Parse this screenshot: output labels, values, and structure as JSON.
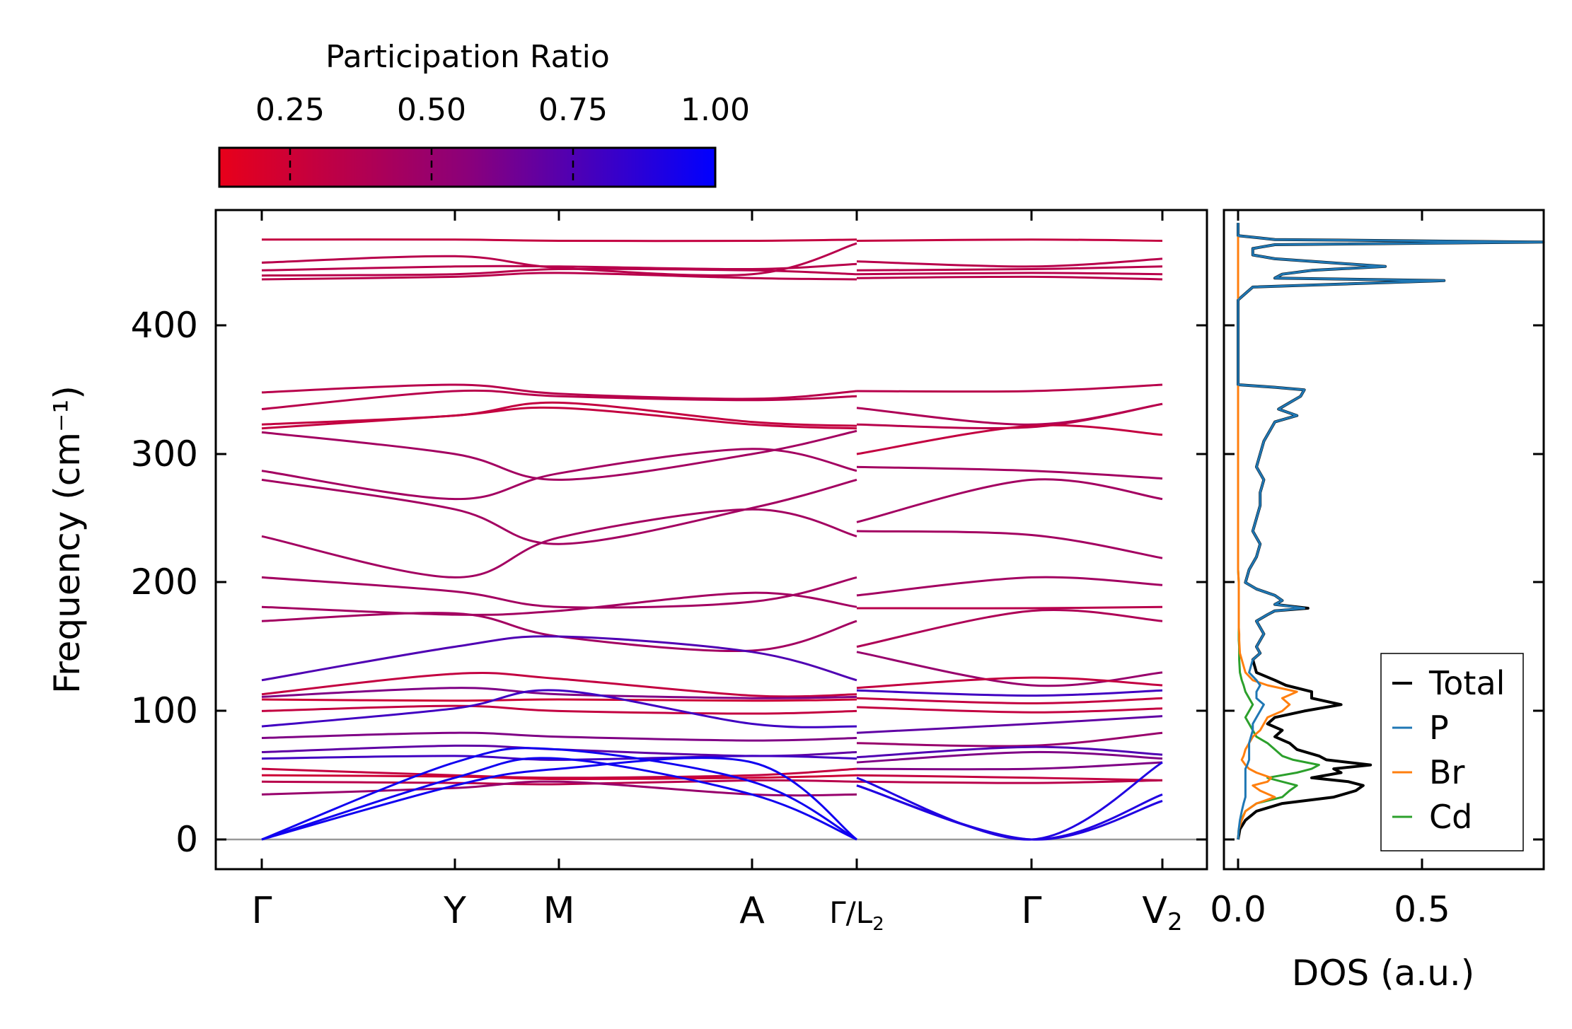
{
  "colors": {
    "pr_low": "#e8001a",
    "pr_mid": "#8b007a",
    "pr_high": "#0000ff",
    "total": "#000000",
    "P": "#1f77b4",
    "Br": "#ff7f0e",
    "Cd": "#2ca02c",
    "zero_line": "#999999"
  },
  "colorbar": {
    "title": "Participation Ratio",
    "ticks": [
      "0.25",
      "0.50",
      "0.75",
      "1.00"
    ]
  },
  "chart_data": [
    {
      "type": "line",
      "name": "phonon-band-structure",
      "ylabel": "Frequency (cm⁻¹)",
      "ylim": [
        -22,
        490
      ],
      "yticks": [
        "0",
        "100",
        "200",
        "300",
        "400"
      ],
      "kpath": [
        "Γ",
        "Y",
        "M",
        "A",
        "Γ/L₂",
        "Γ",
        "V₂"
      ],
      "kpath_labels": [
        {
          "text": "Γ",
          "sub": ""
        },
        {
          "text": "Y",
          "sub": ""
        },
        {
          "text": "M",
          "sub": ""
        },
        {
          "text": "A",
          "sub": ""
        },
        {
          "text": "Γ/L",
          "sub": "2"
        },
        {
          "text": "Γ",
          "sub": ""
        },
        {
          "text": "V",
          "sub": "2"
        }
      ],
      "color_by": "participation_ratio",
      "segment1_bands": [
        {
          "v": [
            467,
            467,
            466,
            466,
            467
          ],
          "pr": 0.3
        },
        {
          "v": [
            449,
            454,
            445,
            440,
            464
          ],
          "pr": 0.35
        },
        {
          "v": [
            443,
            446,
            446,
            444,
            448
          ],
          "pr": 0.35
        },
        {
          "v": [
            439,
            440,
            444,
            443,
            440
          ],
          "pr": 0.35
        },
        {
          "v": [
            436,
            438,
            441,
            437,
            436
          ],
          "pr": 0.35
        },
        {
          "v": [
            348,
            354,
            347,
            343,
            349
          ],
          "pr": 0.35
        },
        {
          "v": [
            335,
            349,
            345,
            342,
            345
          ],
          "pr": 0.35
        },
        {
          "v": [
            323,
            330,
            340,
            325,
            322
          ],
          "pr": 0.3
        },
        {
          "v": [
            320,
            330,
            336,
            323,
            320
          ],
          "pr": 0.3
        },
        {
          "v": [
            317,
            300,
            280,
            300,
            318
          ],
          "pr": 0.45
        },
        {
          "v": [
            287,
            265,
            285,
            304,
            287
          ],
          "pr": 0.45
        },
        {
          "v": [
            280,
            257,
            230,
            258,
            280
          ],
          "pr": 0.45
        },
        {
          "v": [
            236,
            204,
            235,
            257,
            236
          ],
          "pr": 0.45
        },
        {
          "v": [
            204,
            193,
            181,
            185,
            204
          ],
          "pr": 0.45
        },
        {
          "v": [
            181,
            175,
            178,
            192,
            181
          ],
          "pr": 0.45
        },
        {
          "v": [
            170,
            176,
            158,
            147,
            170
          ],
          "pr": 0.45
        },
        {
          "v": [
            124,
            150,
            158,
            146,
            124
          ],
          "pr": 0.75
        },
        {
          "v": [
            113,
            129,
            125,
            112,
            113
          ],
          "pr": 0.3
        },
        {
          "v": [
            111,
            118,
            113,
            110,
            111
          ],
          "pr": 0.6
        },
        {
          "v": [
            109,
            108,
            109,
            108,
            109
          ],
          "pr": 0.25
        },
        {
          "v": [
            100,
            104,
            100,
            98,
            100
          ],
          "pr": 0.3
        },
        {
          "v": [
            88,
            102,
            116,
            90,
            88
          ],
          "pr": 0.8
        },
        {
          "v": [
            79,
            83,
            80,
            77,
            79
          ],
          "pr": 0.6
        },
        {
          "v": [
            68,
            73,
            70,
            65,
            68
          ],
          "pr": 0.7
        },
        {
          "v": [
            63,
            65,
            62,
            65,
            63
          ],
          "pr": 0.8
        },
        {
          "v": [
            55,
            50,
            48,
            50,
            55
          ],
          "pr": 0.3
        },
        {
          "v": [
            50,
            49,
            47,
            48,
            50
          ],
          "pr": 0.25
        },
        {
          "v": [
            45,
            44,
            43,
            46,
            45
          ],
          "pr": 0.35
        },
        {
          "v": [
            35,
            40,
            45,
            35,
            35
          ],
          "pr": 0.5
        },
        {
          "v": [
            0,
            60,
            70,
            45,
            0
          ],
          "pr": 0.95
        },
        {
          "v": [
            0,
            48,
            63,
            35,
            0
          ],
          "pr": 0.95
        },
        {
          "v": [
            0,
            42,
            55,
            60,
            0
          ],
          "pr": 0.95
        }
      ],
      "segment2_bands": [
        {
          "v": [
            466,
            467,
            466
          ],
          "pr": 0.3
        },
        {
          "v": [
            450,
            446,
            452
          ],
          "pr": 0.35
        },
        {
          "v": [
            443,
            444,
            446
          ],
          "pr": 0.35
        },
        {
          "v": [
            440,
            441,
            440
          ],
          "pr": 0.35
        },
        {
          "v": [
            437,
            438,
            436
          ],
          "pr": 0.35
        },
        {
          "v": [
            349,
            349,
            354
          ],
          "pr": 0.35
        },
        {
          "v": [
            336,
            323,
            339
          ],
          "pr": 0.4
        },
        {
          "v": [
            323,
            321,
            339
          ],
          "pr": 0.35
        },
        {
          "v": [
            300,
            322,
            315
          ],
          "pr": 0.3
        },
        {
          "v": [
            290,
            287,
            281
          ],
          "pr": 0.45
        },
        {
          "v": [
            247,
            280,
            265
          ],
          "pr": 0.45
        },
        {
          "v": [
            240,
            237,
            219
          ],
          "pr": 0.45
        },
        {
          "v": [
            190,
            204,
            198
          ],
          "pr": 0.45
        },
        {
          "v": [
            180,
            180,
            181
          ],
          "pr": 0.35
        },
        {
          "v": [
            150,
            178,
            170
          ],
          "pr": 0.4
        },
        {
          "v": [
            146,
            120,
            130
          ],
          "pr": 0.5
        },
        {
          "v": [
            118,
            126,
            120
          ],
          "pr": 0.3
        },
        {
          "v": [
            116,
            112,
            116
          ],
          "pr": 0.8
        },
        {
          "v": [
            110,
            106,
            110
          ],
          "pr": 0.3
        },
        {
          "v": [
            103,
            99,
            102
          ],
          "pr": 0.3
        },
        {
          "v": [
            83,
            90,
            96
          ],
          "pr": 0.7
        },
        {
          "v": [
            75,
            73,
            83
          ],
          "pr": 0.5
        },
        {
          "v": [
            64,
            72,
            66
          ],
          "pr": 0.75
        },
        {
          "v": [
            60,
            68,
            63
          ],
          "pr": 0.6
        },
        {
          "v": [
            55,
            55,
            60
          ],
          "pr": 0.6
        },
        {
          "v": [
            50,
            48,
            46
          ],
          "pr": 0.3
        },
        {
          "v": [
            45,
            44,
            46
          ],
          "pr": 0.35
        },
        {
          "v": [
            42,
            0,
            35
          ],
          "pr": 0.9
        },
        {
          "v": [
            42,
            0,
            30
          ],
          "pr": 0.9
        },
        {
          "v": [
            48,
            0,
            60
          ],
          "pr": 0.9
        }
      ]
    },
    {
      "type": "line",
      "name": "density-of-states",
      "xlabel": "DOS (a.u.)",
      "xlim": [
        -0.02,
        0.86
      ],
      "xticks": [
        "0.0",
        "0.5"
      ],
      "legend": [
        "Total",
        "P",
        "Br",
        "Cd"
      ],
      "legend_position": "lower-right",
      "frequency": [
        0,
        8,
        15,
        22,
        28,
        33,
        38,
        42,
        45,
        48,
        52,
        55,
        58,
        62,
        65,
        70,
        75,
        80,
        85,
        90,
        95,
        100,
        105,
        110,
        115,
        120,
        124,
        130,
        140,
        145,
        150,
        155,
        160,
        165,
        170,
        175,
        178,
        180,
        183,
        186,
        190,
        195,
        200,
        210,
        220,
        230,
        240,
        250,
        260,
        270,
        280,
        290,
        300,
        310,
        320,
        325,
        330,
        335,
        340,
        345,
        350,
        352,
        354,
        360,
        380,
        400,
        420,
        430,
        435,
        437,
        440,
        443,
        446,
        449,
        452,
        455,
        460,
        463,
        465,
        467,
        470,
        480
      ],
      "series": [
        {
          "name": "Total",
          "values": [
            0,
            0.005,
            0.02,
            0.05,
            0.12,
            0.26,
            0.32,
            0.34,
            0.3,
            0.2,
            0.28,
            0.26,
            0.36,
            0.24,
            0.22,
            0.16,
            0.14,
            0.1,
            0.12,
            0.08,
            0.1,
            0.18,
            0.28,
            0.2,
            0.2,
            0.13,
            0.1,
            0.05,
            0.04,
            0.06,
            0.05,
            0.06,
            0.07,
            0.06,
            0.05,
            0.08,
            0.1,
            0.19,
            0.1,
            0.12,
            0.1,
            0.05,
            0.02,
            0.03,
            0.05,
            0.06,
            0.04,
            0.05,
            0.06,
            0.06,
            0.07,
            0.05,
            0.06,
            0.07,
            0.09,
            0.1,
            0.16,
            0.11,
            0.14,
            0.17,
            0.18,
            0.1,
            0,
            0,
            0,
            0,
            0,
            0.04,
            0.56,
            0.1,
            0.12,
            0.2,
            0.4,
            0.25,
            0.1,
            0.04,
            0.04,
            0.1,
            0.83,
            0.1,
            0,
            0
          ]
        },
        {
          "name": "P",
          "values": [
            0,
            0.002,
            0.005,
            0.01,
            0.015,
            0.02,
            0.02,
            0.02,
            0.02,
            0.02,
            0.02,
            0.02,
            0.025,
            0.03,
            0.03,
            0.03,
            0.03,
            0.035,
            0.04,
            0.04,
            0.05,
            0.06,
            0.07,
            0.05,
            0.05,
            0.06,
            0.05,
            0.03,
            0.04,
            0.06,
            0.05,
            0.06,
            0.07,
            0.06,
            0.05,
            0.08,
            0.1,
            0.18,
            0.1,
            0.12,
            0.1,
            0.05,
            0.02,
            0.03,
            0.05,
            0.06,
            0.04,
            0.05,
            0.06,
            0.06,
            0.07,
            0.05,
            0.06,
            0.07,
            0.09,
            0.1,
            0.16,
            0.11,
            0.14,
            0.17,
            0.18,
            0.1,
            0,
            0,
            0,
            0,
            0,
            0.04,
            0.56,
            0.1,
            0.12,
            0.2,
            0.4,
            0.25,
            0.1,
            0.04,
            0.04,
            0.1,
            0.83,
            0.1,
            0,
            0
          ]
        },
        {
          "name": "Br",
          "values": [
            0,
            0.002,
            0.01,
            0.02,
            0.05,
            0.1,
            0.06,
            0.04,
            0.08,
            0.09,
            0.05,
            0.03,
            0.02,
            0.01,
            0.015,
            0.02,
            0.03,
            0.04,
            0.06,
            0.07,
            0.08,
            0.12,
            0.14,
            0.12,
            0.16,
            0.08,
            0.04,
            0.02,
            0.01,
            0.005,
            0.004,
            0.003,
            0.003,
            0.002,
            0.002,
            0.002,
            0.002,
            0.002,
            0.002,
            0.002,
            0.002,
            0.002,
            0.002,
            0,
            0,
            0,
            0,
            0,
            0,
            0,
            0,
            0,
            0,
            0,
            0,
            0,
            0,
            0,
            0,
            0,
            0,
            0,
            0,
            0,
            0,
            0,
            0,
            0,
            0,
            0,
            0,
            0,
            0,
            0,
            0,
            0,
            0,
            0,
            0,
            0,
            0,
            0
          ]
        },
        {
          "name": "Cd",
          "values": [
            0,
            0.002,
            0.008,
            0.02,
            0.05,
            0.12,
            0.14,
            0.16,
            0.12,
            0.08,
            0.16,
            0.2,
            0.22,
            0.15,
            0.12,
            0.1,
            0.08,
            0.05,
            0.04,
            0.03,
            0.02,
            0.03,
            0.04,
            0.03,
            0.02,
            0.015,
            0.01,
            0.005,
            0.003,
            0.003,
            0.003,
            0.002,
            0.002,
            0.002,
            0.002,
            0.002,
            0.002,
            0.002,
            0.002,
            0.002,
            0.002,
            0.002,
            0.002,
            0,
            0,
            0,
            0,
            0,
            0,
            0,
            0,
            0,
            0,
            0,
            0,
            0,
            0,
            0,
            0,
            0,
            0,
            0,
            0,
            0,
            0,
            0,
            0,
            0,
            0,
            0,
            0,
            0,
            0,
            0,
            0,
            0,
            0,
            0,
            0,
            0,
            0,
            0
          ]
        }
      ]
    }
  ]
}
